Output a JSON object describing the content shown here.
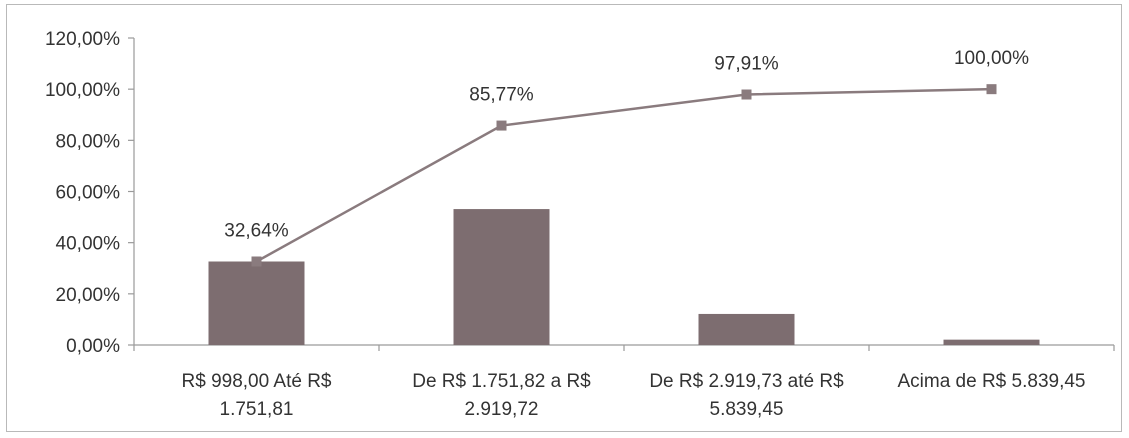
{
  "chart_data": {
    "type": "bar+line",
    "categories": [
      [
        "R$ 998,00 Até R$",
        "1.751,81"
      ],
      [
        "De R$ 1.751,82 a R$",
        "2.919,72"
      ],
      [
        "De R$ 2.919,73 até R$",
        "5.839,45"
      ],
      [
        "Acima de R$ 5.839,45"
      ]
    ],
    "series": [
      {
        "type": "bar",
        "values": [
          32.64,
          53.13,
          12.14,
          2.09
        ],
        "color": "#7d6d70"
      },
      {
        "type": "line",
        "values": [
          32.64,
          85.77,
          97.91,
          100.0
        ],
        "data_labels": [
          "32,64%",
          "85,77%",
          "97,91%",
          "100,00%"
        ],
        "color": "#8a7b7e"
      }
    ],
    "y_ticks": [
      "0,00%",
      "20,00%",
      "40,00%",
      "60,00%",
      "80,00%",
      "100,00%",
      "120,00%"
    ],
    "ylim": [
      0,
      120
    ],
    "title": "",
    "xlabel": "",
    "ylabel": "",
    "grid": false,
    "legend": "none"
  }
}
